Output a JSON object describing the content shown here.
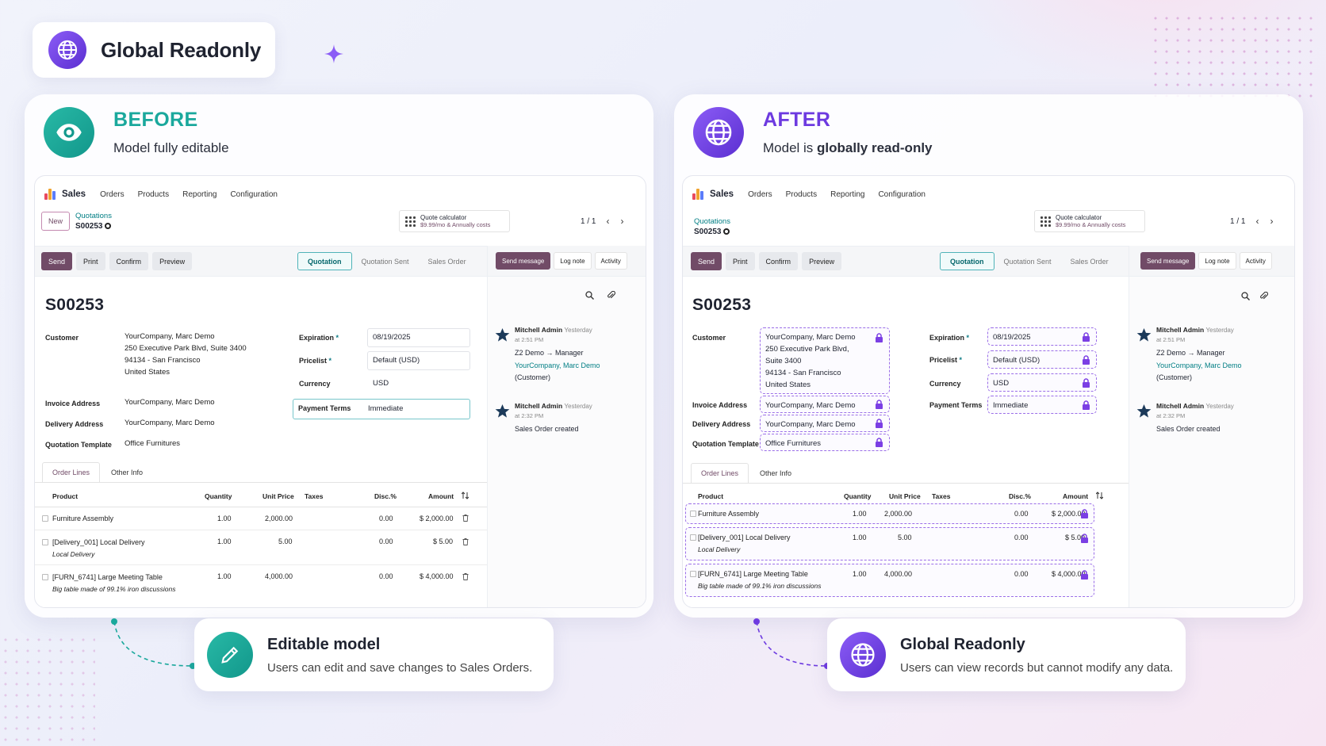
{
  "page_title": "Global Readonly",
  "colors": {
    "teal": "#1aa89c",
    "purple": "#6d3ae0",
    "odoo_primary": "#714b67"
  },
  "before": {
    "keyword": "BEFORE",
    "subtitle": "Model fully editable",
    "icon": "eye-icon"
  },
  "after": {
    "keyword": "AFTER",
    "subtitle_prefix": "Model is ",
    "subtitle_bold": "globally read-only",
    "icon": "globe-icon"
  },
  "odoo": {
    "app": "Sales",
    "menu": [
      "Orders",
      "Products",
      "Reporting",
      "Configuration"
    ],
    "new_label": "New",
    "breadcrumb": "Quotations",
    "record": "S00253",
    "quote_calc_title": "Quote calculator",
    "quote_calc_sub": "$9.99/mo & Annually costs",
    "pager": "1 / 1",
    "actions": [
      "Send",
      "Print",
      "Confirm",
      "Preview"
    ],
    "statuses": [
      "Quotation",
      "Quotation Sent",
      "Sales Order"
    ],
    "chat_actions": [
      "Send message",
      "Log note",
      "Activity"
    ],
    "labels": {
      "customer": "Customer",
      "invoice": "Invoice Address",
      "delivery": "Delivery Address",
      "template": "Quotation Template",
      "expiration": "Expiration",
      "pricelist": "Pricelist",
      "currency": "Currency",
      "payment": "Payment Terms",
      "required_mark": "*"
    },
    "before_customer": [
      "YourCompany, Marc Demo",
      "250 Executive Park Blvd, Suite 3400",
      "94134 - San Francisco",
      "United States"
    ],
    "after_customer": [
      "YourCompany, Marc Demo",
      "250 Executive Park Blvd,",
      "Suite 3400",
      "94134 - San Francisco",
      "United States"
    ],
    "invoice_address": "YourCompany, Marc Demo",
    "delivery_address": "YourCompany, Marc Demo",
    "quotation_template": "Office Furnitures",
    "expiration": "08/19/2025",
    "pricelist": "Default (USD)",
    "currency": "USD",
    "payment_terms": "Immediate",
    "tabs": [
      "Order Lines",
      "Other Info"
    ],
    "columns": [
      "Product",
      "Quantity",
      "Unit Price",
      "Taxes",
      "Disc.%",
      "Amount"
    ],
    "lines": [
      {
        "product": "Furniture Assembly",
        "desc": "",
        "qty": "1.00",
        "price": "2,000.00",
        "disc": "0.00",
        "amount": "$ 2,000.00"
      },
      {
        "product": "[Delivery_001] Local Delivery",
        "desc": "Local Delivery",
        "qty": "1.00",
        "price": "5.00",
        "disc": "0.00",
        "amount": "$ 5.00"
      },
      {
        "product": "[FURN_6741] Large Meeting Table",
        "desc": "Big table made of 99.1% iron discussions",
        "qty": "1.00",
        "price": "4,000.00",
        "disc": "0.00",
        "amount": "$ 4,000.00"
      }
    ],
    "chatter": [
      {
        "author": "Mitchell Admin",
        "when": "Yesterday",
        "time": "at 2:51 PM",
        "line1": "Z2 Demo → Manager",
        "line2": "YourCompany, Marc Demo",
        "line3": "(Customer)"
      },
      {
        "author": "Mitchell Admin",
        "when": "Yesterday",
        "time": "at 2:32 PM",
        "line1": "Sales Order created"
      }
    ]
  },
  "callouts": {
    "editable": {
      "title": "Editable model",
      "text": "Users can edit and save changes to Sales Orders.",
      "icon": "pencil-icon"
    },
    "readonly": {
      "title": "Global Readonly",
      "text": "Users can view records but cannot modify any data.",
      "icon": "globe-icon"
    }
  }
}
